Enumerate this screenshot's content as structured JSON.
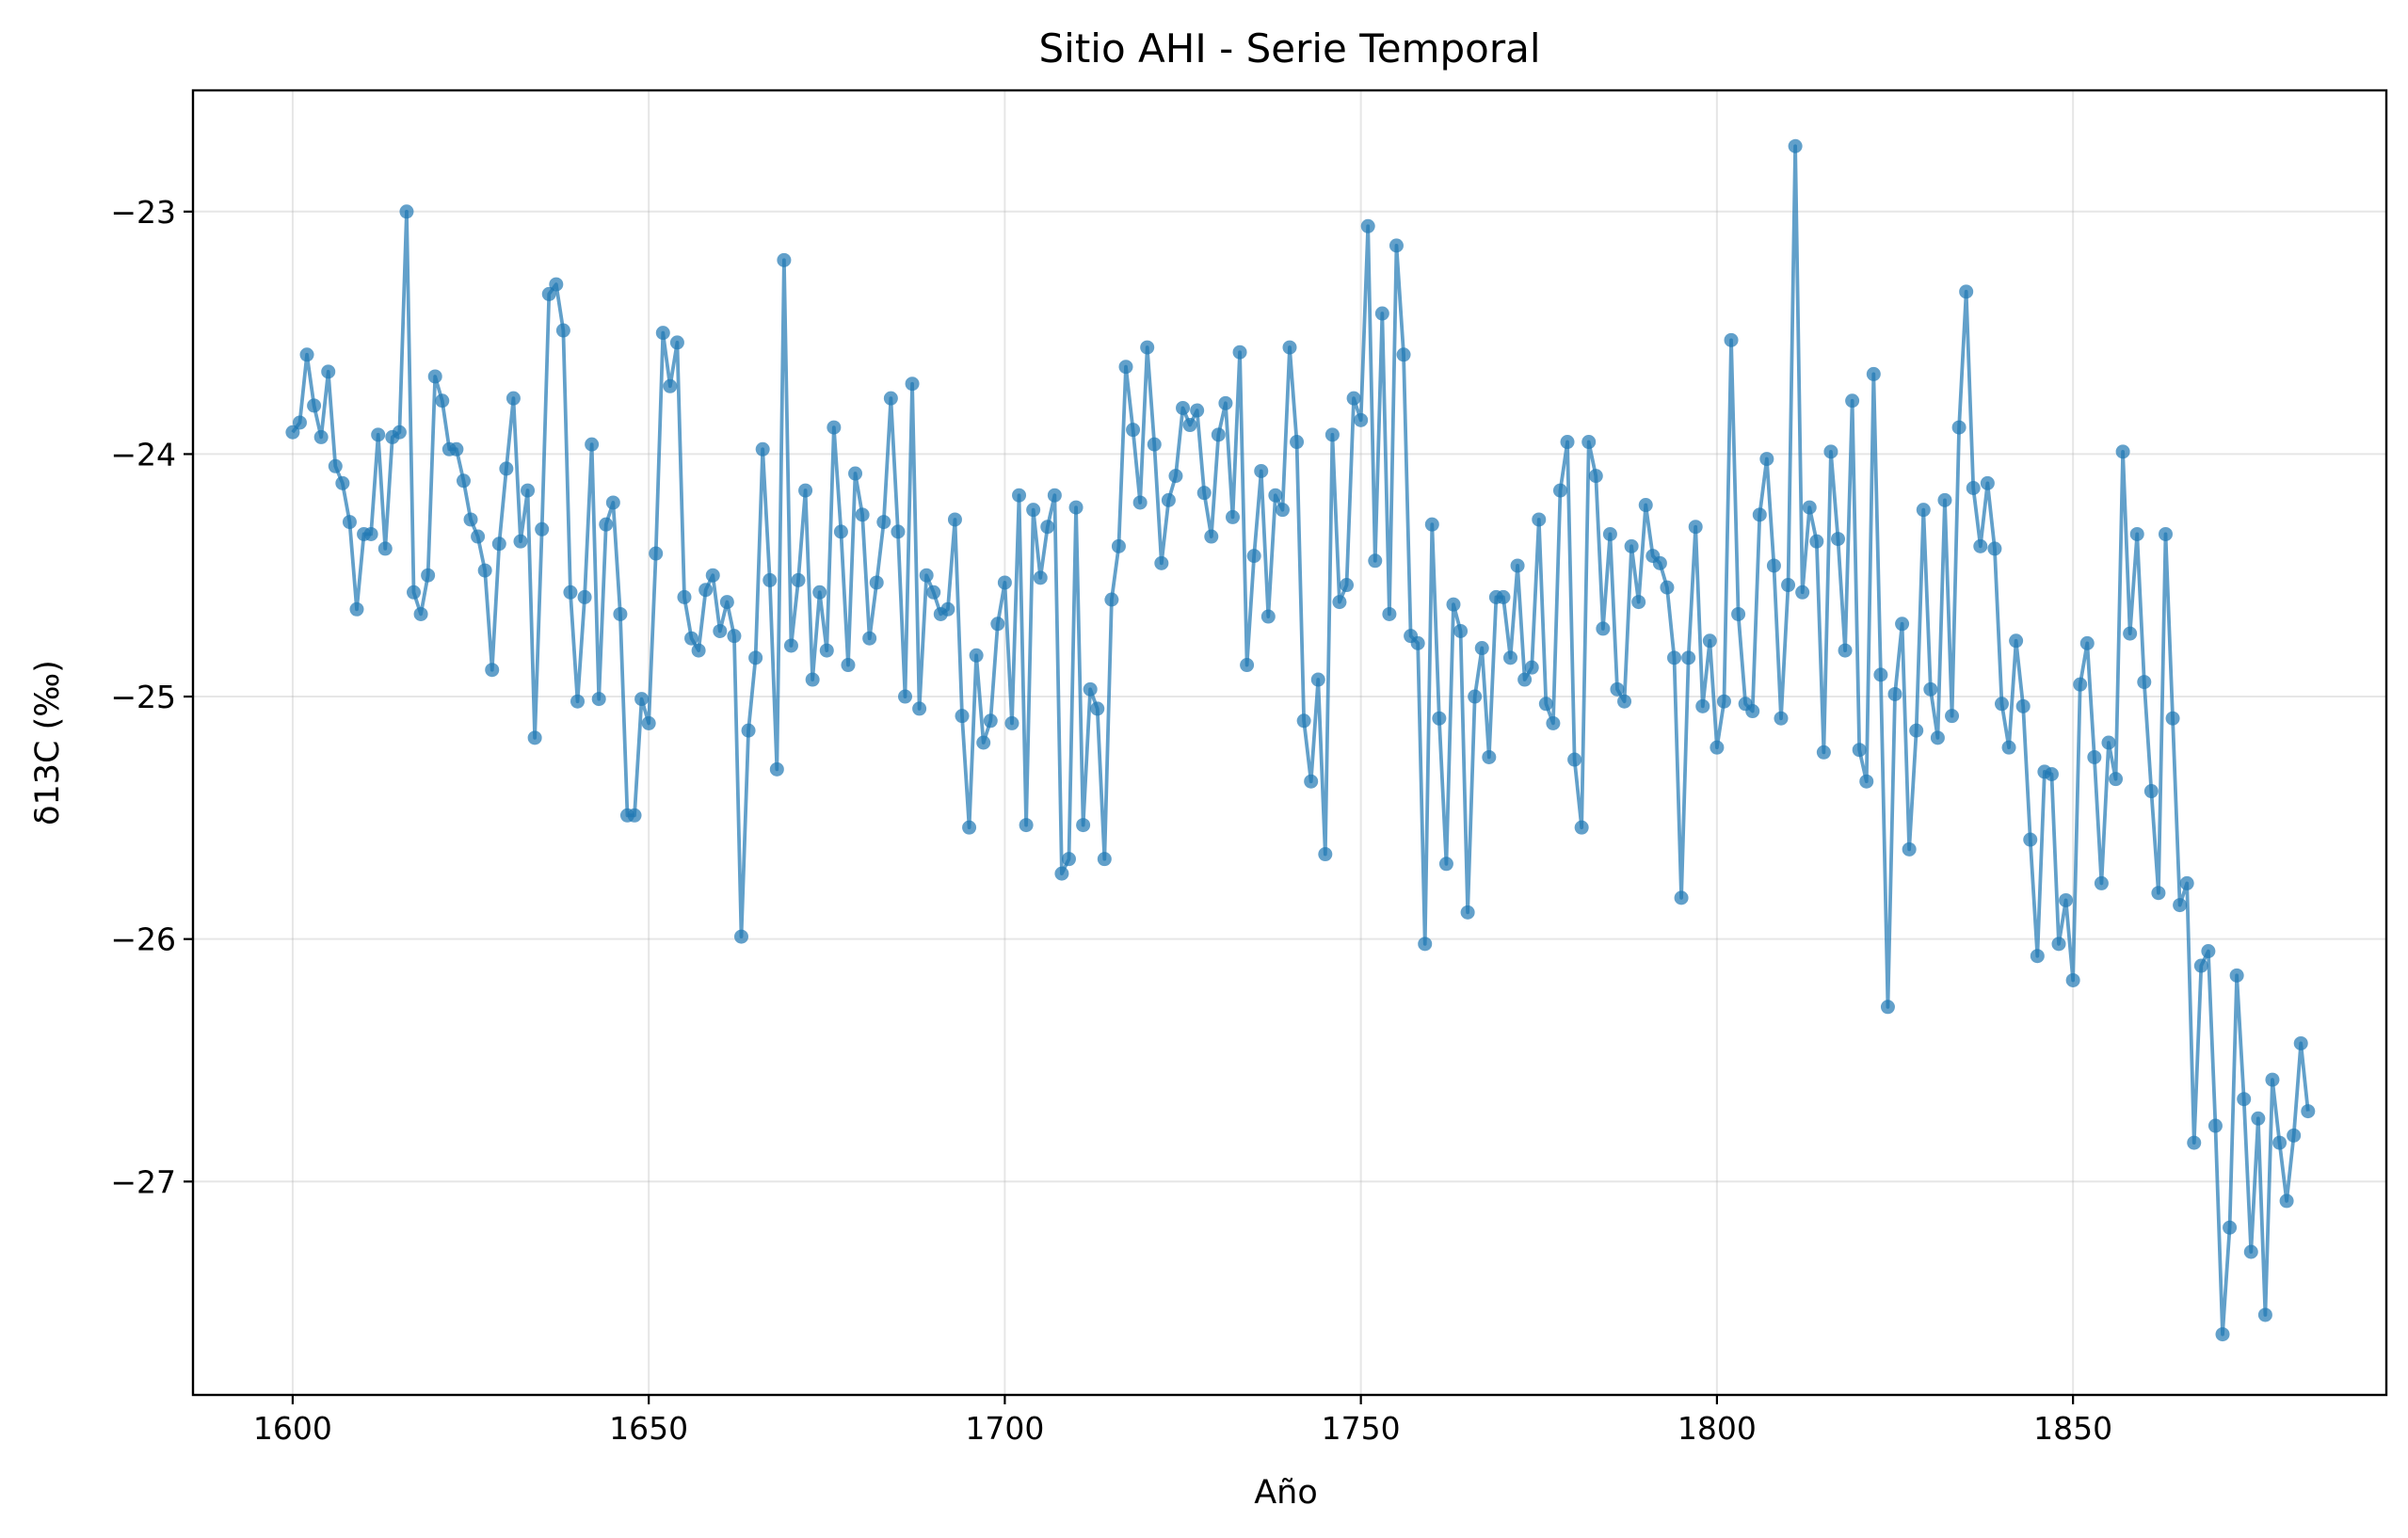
{
  "chart_data": {
    "type": "line",
    "title": "Sitio AHI - Serie Temporal",
    "xlabel": "Año",
    "ylabel": "δ13C (‰)",
    "xlim": [
      1586,
      1894
    ],
    "ylim": [
      -27.88,
      -22.5
    ],
    "xticks": [
      1600,
      1650,
      1700,
      1750,
      1800,
      1850
    ],
    "yticks": [
      -27,
      -26,
      -25,
      -24,
      -23
    ],
    "ytick_labels": [
      "−27",
      "−26",
      "−25",
      "−24",
      "−23"
    ],
    "grid": true,
    "markers": true,
    "series_color": "#1f77b4",
    "x": [
      1600,
      1601,
      1602,
      1603,
      1604,
      1605,
      1606,
      1607,
      1608,
      1609,
      1610,
      1611,
      1612,
      1613,
      1614,
      1615,
      1616,
      1617,
      1618,
      1619,
      1620,
      1621,
      1622,
      1623,
      1624,
      1625,
      1626,
      1627,
      1628,
      1629,
      1630,
      1631,
      1632,
      1633,
      1634,
      1635,
      1636,
      1637,
      1638,
      1639,
      1640,
      1641,
      1642,
      1643,
      1644,
      1645,
      1646,
      1647,
      1648,
      1649,
      1650,
      1651,
      1652,
      1653,
      1654,
      1655,
      1656,
      1657,
      1658,
      1659,
      1660,
      1661,
      1662,
      1663,
      1664,
      1665,
      1666,
      1667,
      1668,
      1669,
      1670,
      1671,
      1672,
      1673,
      1674,
      1675,
      1676,
      1677,
      1678,
      1679,
      1680,
      1681,
      1682,
      1683,
      1684,
      1685,
      1686,
      1687,
      1688,
      1689,
      1690,
      1691,
      1692,
      1693,
      1694,
      1695,
      1696,
      1697,
      1698,
      1699,
      1700,
      1701,
      1702,
      1703,
      1704,
      1705,
      1706,
      1707,
      1708,
      1709,
      1710,
      1711,
      1712,
      1713,
      1714,
      1715,
      1716,
      1717,
      1718,
      1719,
      1720,
      1721,
      1722,
      1723,
      1724,
      1725,
      1726,
      1727,
      1728,
      1729,
      1730,
      1731,
      1732,
      1733,
      1734,
      1735,
      1736,
      1737,
      1738,
      1739,
      1740,
      1741,
      1742,
      1743,
      1744,
      1745,
      1746,
      1747,
      1748,
      1749,
      1750,
      1751,
      1752,
      1753,
      1754,
      1755,
      1756,
      1757,
      1758,
      1759,
      1760,
      1761,
      1762,
      1763,
      1764,
      1765,
      1766,
      1767,
      1768,
      1769,
      1770,
      1771,
      1772,
      1773,
      1774,
      1775,
      1776,
      1777,
      1778,
      1779,
      1780,
      1781,
      1782,
      1783,
      1784,
      1785,
      1786,
      1787,
      1788,
      1789,
      1790,
      1791,
      1792,
      1793,
      1794,
      1795,
      1796,
      1797,
      1798,
      1799,
      1800,
      1801,
      1802,
      1803,
      1804,
      1805,
      1806,
      1807,
      1808,
      1809,
      1810,
      1811,
      1812,
      1813,
      1814,
      1815,
      1816,
      1817,
      1818,
      1819,
      1820,
      1821,
      1822,
      1823,
      1824,
      1825,
      1826,
      1827,
      1828,
      1829,
      1830,
      1831,
      1832,
      1833,
      1834,
      1835,
      1836,
      1837,
      1838,
      1839,
      1840,
      1841,
      1842,
      1843,
      1844,
      1845,
      1846,
      1847,
      1848,
      1849,
      1850,
      1851,
      1852,
      1853,
      1854,
      1855,
      1856,
      1857,
      1858,
      1859,
      1860,
      1861,
      1862,
      1863,
      1864,
      1865,
      1866,
      1867,
      1868,
      1869,
      1870,
      1871,
      1872,
      1873,
      1874,
      1875,
      1876,
      1877,
      1878,
      1879,
      1880,
      1881,
      1882,
      1883
    ],
    "y": [
      -23.91,
      -23.87,
      -23.59,
      -23.8,
      -23.93,
      -23.66,
      -24.05,
      -24.12,
      -24.28,
      -24.64,
      -24.33,
      -24.33,
      -23.92,
      -24.39,
      -23.93,
      -23.91,
      -23.0,
      -24.57,
      -24.66,
      -24.5,
      -23.68,
      -23.78,
      -23.98,
      -23.98,
      -24.11,
      -24.27,
      -24.34,
      -24.48,
      -24.89,
      -24.37,
      -24.06,
      -23.77,
      -24.36,
      -24.15,
      -25.17,
      -24.31,
      -23.34,
      -23.3,
      -23.49,
      -24.57,
      -25.02,
      -24.59,
      -23.96,
      -25.01,
      -24.29,
      -24.2,
      -24.66,
      -25.49,
      -25.49,
      -25.01,
      -25.11,
      -24.41,
      -23.5,
      -23.72,
      -23.54,
      -24.59,
      -24.76,
      -24.81,
      -24.56,
      -24.5,
      -24.73,
      -24.61,
      -24.75,
      -25.99,
      -25.14,
      -24.84,
      -23.98,
      -24.52,
      -25.3,
      -23.2,
      -24.79,
      -24.52,
      -24.15,
      -24.93,
      -24.57,
      -24.81,
      -23.89,
      -24.32,
      -24.87,
      -24.08,
      -24.25,
      -24.76,
      -24.53,
      -24.28,
      -23.77,
      -24.32,
      -25.0,
      -23.71,
      -25.05,
      -24.5,
      -24.57,
      -24.66,
      -24.64,
      -24.27,
      -25.08,
      -25.54,
      -24.83,
      -25.19,
      -25.1,
      -24.7,
      -24.53,
      -25.11,
      -24.17,
      -25.53,
      -24.23,
      -24.51,
      -24.3,
      -24.17,
      -25.73,
      -25.67,
      -24.22,
      -25.53,
      -24.97,
      -25.05,
      -25.67,
      -24.6,
      -24.38,
      -23.64,
      -23.9,
      -24.2,
      -23.56,
      -23.96,
      -24.45,
      -24.19,
      -24.09,
      -23.81,
      -23.88,
      -23.82,
      -24.16,
      -24.34,
      -23.92,
      -23.79,
      -24.26,
      -23.58,
      -24.87,
      -24.42,
      -24.07,
      -24.67,
      -24.17,
      -24.23,
      -23.56,
      -23.95,
      -25.1,
      -25.35,
      -24.93,
      -25.65,
      -23.92,
      -24.61,
      -24.54,
      -23.77,
      -23.86,
      -23.06,
      -24.44,
      -23.42,
      -24.66,
      -23.14,
      -23.59,
      -24.75,
      -24.78,
      -26.02,
      -24.29,
      -25.09,
      -25.69,
      -24.62,
      -24.73,
      -25.89,
      -25.0,
      -24.8,
      -25.25,
      -24.59,
      -24.59,
      -24.84,
      -24.46,
      -24.93,
      -24.88,
      -24.27,
      -25.03,
      -25.11,
      -24.15,
      -23.95,
      -25.26,
      -25.54,
      -23.95,
      -24.09,
      -24.72,
      -24.33,
      -24.97,
      -25.02,
      -24.38,
      -24.61,
      -24.21,
      -24.42,
      -24.45,
      -24.55,
      -24.84,
      -25.83,
      -24.84,
      -24.3,
      -25.04,
      -24.77,
      -25.21,
      -25.02,
      -23.53,
      -24.66,
      -25.03,
      -25.06,
      -24.25,
      -24.02,
      -24.46,
      -25.09,
      -24.54,
      -22.73,
      -24.57,
      -24.22,
      -24.36,
      -25.23,
      -23.99,
      -24.35,
      -24.81,
      -23.78,
      -25.22,
      -25.35,
      -23.67,
      -24.91,
      -26.28,
      -24.99,
      -24.7,
      -25.63,
      -25.14,
      -24.23,
      -24.97,
      -25.17,
      -24.19,
      -25.08,
      -23.89,
      -23.33,
      -24.14,
      -24.38,
      -24.12,
      -24.39,
      -25.03,
      -25.21,
      -24.77,
      -25.04,
      -25.59,
      -26.07,
      -25.31,
      -25.32,
      -26.02,
      -25.84,
      -26.17,
      -24.95,
      -24.78,
      -25.25,
      -25.77,
      -25.19,
      -25.34,
      -23.99,
      -24.74,
      -24.33,
      -24.94,
      -25.39,
      -25.81,
      -24.33,
      -25.09,
      -25.86,
      -25.77,
      -26.84,
      -26.11,
      -26.05,
      -26.77,
      -27.63,
      -27.19,
      -26.15,
      -26.66,
      -27.29,
      -26.74,
      -27.55,
      -26.58,
      -26.84,
      -27.08,
      -26.81,
      -26.43,
      -26.71
    ]
  }
}
